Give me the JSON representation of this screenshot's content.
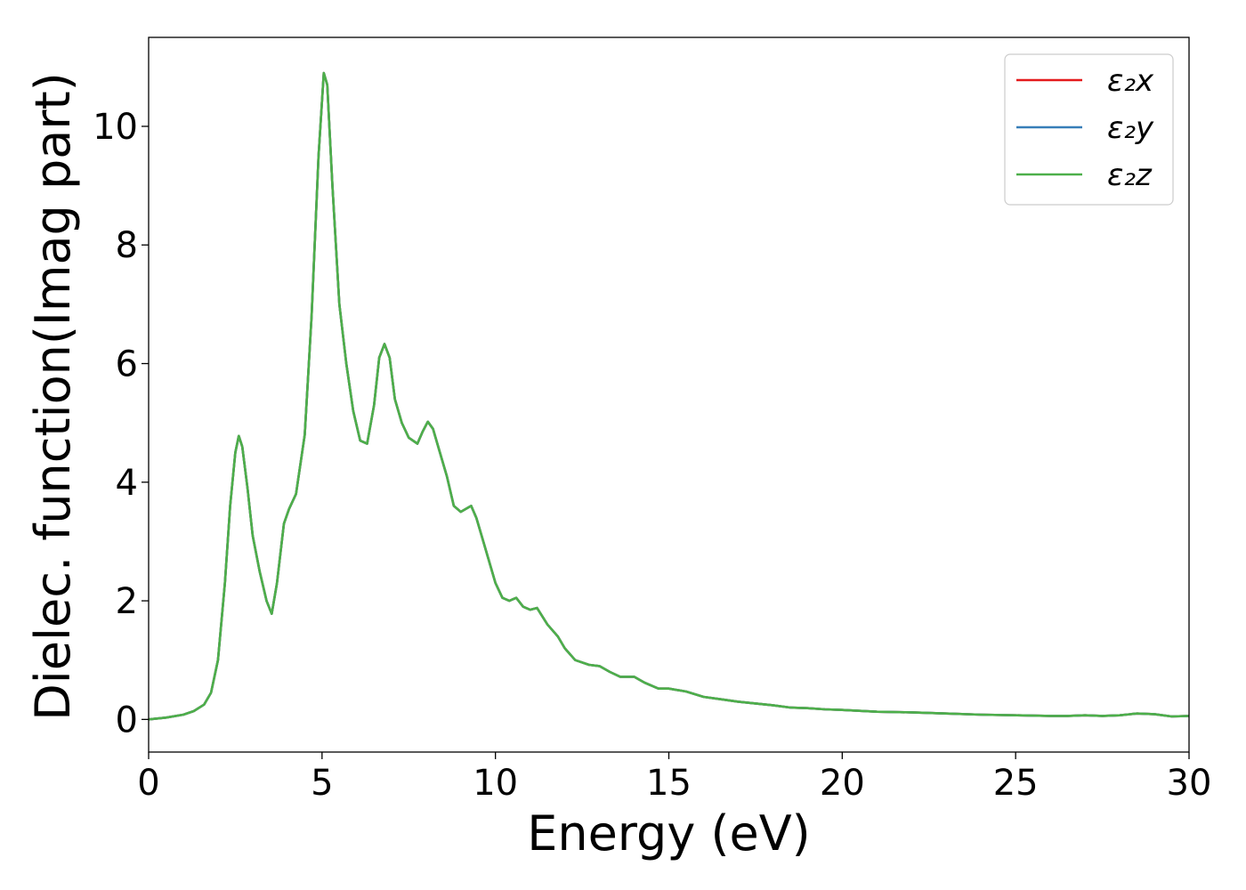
{
  "chart_data": {
    "type": "line",
    "title": "",
    "xlabel": "Energy (eV)",
    "ylabel": "Dielec. function(Imag part)",
    "xlim": [
      0,
      30
    ],
    "ylim": [
      -0.55,
      11.5
    ],
    "xticks": [
      0,
      5,
      10,
      15,
      20,
      25,
      30
    ],
    "yticks": [
      0,
      2,
      4,
      6,
      8,
      10
    ],
    "grid": false,
    "legend_position": "top-right",
    "x": [
      0,
      0.5,
      1.0,
      1.3,
      1.6,
      1.8,
      2.0,
      2.2,
      2.35,
      2.5,
      2.6,
      2.7,
      2.85,
      3.0,
      3.2,
      3.4,
      3.55,
      3.7,
      3.9,
      4.05,
      4.25,
      4.5,
      4.7,
      4.9,
      5.05,
      5.15,
      5.3,
      5.5,
      5.7,
      5.9,
      6.1,
      6.3,
      6.5,
      6.65,
      6.8,
      6.95,
      7.1,
      7.3,
      7.5,
      7.75,
      7.9,
      8.05,
      8.2,
      8.4,
      8.6,
      8.8,
      9.0,
      9.15,
      9.3,
      9.45,
      9.6,
      9.8,
      10.0,
      10.2,
      10.4,
      10.6,
      10.8,
      11.0,
      11.2,
      11.5,
      11.8,
      12.0,
      12.3,
      12.7,
      13.0,
      13.3,
      13.6,
      14.0,
      14.3,
      14.7,
      15.0,
      15.5,
      16.0,
      16.5,
      17.0,
      17.5,
      18.0,
      18.5,
      19.0,
      19.5,
      20.0,
      21.0,
      22.0,
      23.0,
      24.0,
      25.0,
      26.0,
      26.5,
      27.0,
      27.5,
      28.0,
      28.5,
      29.0,
      29.5,
      30.0
    ],
    "series": [
      {
        "name": "ε₂x",
        "color": "#e41a1c",
        "values": [
          0.0,
          0.03,
          0.08,
          0.14,
          0.25,
          0.45,
          1.0,
          2.3,
          3.6,
          4.5,
          4.78,
          4.6,
          3.9,
          3.1,
          2.5,
          2.0,
          1.78,
          2.3,
          3.3,
          3.55,
          3.8,
          4.8,
          6.8,
          9.5,
          10.9,
          10.7,
          9.0,
          7.0,
          6.0,
          5.2,
          4.7,
          4.65,
          5.3,
          6.1,
          6.33,
          6.1,
          5.4,
          5.0,
          4.75,
          4.65,
          4.85,
          5.02,
          4.9,
          4.5,
          4.1,
          3.6,
          3.5,
          3.55,
          3.6,
          3.4,
          3.1,
          2.7,
          2.3,
          2.05,
          2.0,
          2.05,
          1.9,
          1.85,
          1.88,
          1.6,
          1.4,
          1.2,
          1.0,
          0.92,
          0.9,
          0.8,
          0.72,
          0.72,
          0.62,
          0.52,
          0.52,
          0.47,
          0.38,
          0.34,
          0.3,
          0.27,
          0.24,
          0.2,
          0.19,
          0.17,
          0.16,
          0.13,
          0.12,
          0.1,
          0.08,
          0.07,
          0.06,
          0.06,
          0.07,
          0.06,
          0.07,
          0.1,
          0.09,
          0.05,
          0.06
        ]
      },
      {
        "name": "ε₂y",
        "color": "#377eb8",
        "values": [
          0.0,
          0.03,
          0.08,
          0.14,
          0.25,
          0.45,
          1.0,
          2.3,
          3.6,
          4.5,
          4.78,
          4.6,
          3.9,
          3.1,
          2.5,
          2.0,
          1.78,
          2.3,
          3.3,
          3.55,
          3.8,
          4.8,
          6.8,
          9.5,
          10.9,
          10.7,
          9.0,
          7.0,
          6.0,
          5.2,
          4.7,
          4.65,
          5.3,
          6.1,
          6.33,
          6.1,
          5.4,
          5.0,
          4.75,
          4.65,
          4.85,
          5.02,
          4.9,
          4.5,
          4.1,
          3.6,
          3.5,
          3.55,
          3.6,
          3.4,
          3.1,
          2.7,
          2.3,
          2.05,
          2.0,
          2.05,
          1.9,
          1.85,
          1.88,
          1.6,
          1.4,
          1.2,
          1.0,
          0.92,
          0.9,
          0.8,
          0.72,
          0.72,
          0.62,
          0.52,
          0.52,
          0.47,
          0.38,
          0.34,
          0.3,
          0.27,
          0.24,
          0.2,
          0.19,
          0.17,
          0.16,
          0.13,
          0.12,
          0.1,
          0.08,
          0.07,
          0.06,
          0.06,
          0.07,
          0.06,
          0.07,
          0.1,
          0.09,
          0.05,
          0.06
        ]
      },
      {
        "name": "ε₂z",
        "color": "#4daf4a",
        "values": [
          0.0,
          0.03,
          0.08,
          0.14,
          0.25,
          0.45,
          1.0,
          2.3,
          3.6,
          4.5,
          4.78,
          4.6,
          3.9,
          3.1,
          2.5,
          2.0,
          1.78,
          2.3,
          3.3,
          3.55,
          3.8,
          4.8,
          6.8,
          9.5,
          10.9,
          10.7,
          9.0,
          7.0,
          6.0,
          5.2,
          4.7,
          4.65,
          5.3,
          6.1,
          6.33,
          6.1,
          5.4,
          5.0,
          4.75,
          4.65,
          4.85,
          5.02,
          4.9,
          4.5,
          4.1,
          3.6,
          3.5,
          3.55,
          3.6,
          3.4,
          3.1,
          2.7,
          2.3,
          2.05,
          2.0,
          2.05,
          1.9,
          1.85,
          1.88,
          1.6,
          1.4,
          1.2,
          1.0,
          0.92,
          0.9,
          0.8,
          0.72,
          0.72,
          0.62,
          0.52,
          0.52,
          0.47,
          0.38,
          0.34,
          0.3,
          0.27,
          0.24,
          0.2,
          0.19,
          0.17,
          0.16,
          0.13,
          0.12,
          0.1,
          0.08,
          0.07,
          0.06,
          0.06,
          0.07,
          0.06,
          0.07,
          0.1,
          0.09,
          0.05,
          0.06
        ]
      }
    ]
  }
}
